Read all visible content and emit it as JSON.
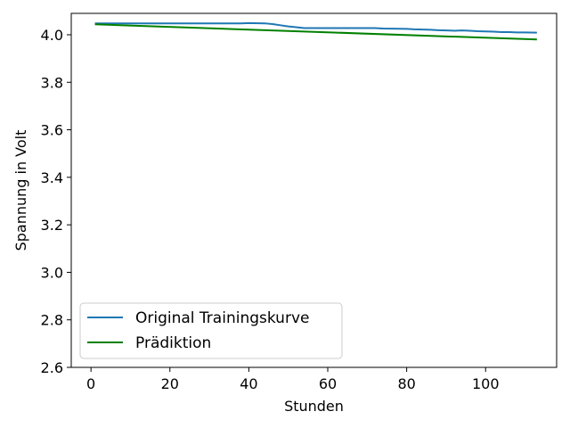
{
  "chart_data": {
    "type": "line",
    "title": "",
    "xlabel": "Stunden",
    "ylabel": "Spannung in Volt",
    "xlim": [
      -5,
      118
    ],
    "ylim": [
      2.6,
      4.09
    ],
    "xticks": [
      0,
      20,
      40,
      60,
      80,
      100
    ],
    "yticks": [
      2.6,
      2.8,
      3.0,
      3.2,
      3.4,
      3.6,
      3.8,
      4.0
    ],
    "xtick_labels": [
      "0",
      "20",
      "40",
      "60",
      "80",
      "100"
    ],
    "ytick_labels": [
      "2.6",
      "2.8",
      "3.0",
      "3.2",
      "3.4",
      "3.6",
      "3.8",
      "4.0"
    ],
    "grid": false,
    "legend_position": "lower-left",
    "series": [
      {
        "name": "Original Trainingskurve",
        "color": "#1f77b4",
        "x": [
          1,
          10,
          20,
          30,
          38,
          40,
          44,
          46,
          48,
          50,
          52,
          54,
          60,
          70,
          72,
          74,
          80,
          82,
          84,
          86,
          88,
          90,
          92,
          94,
          96,
          98,
          100,
          102,
          104,
          106,
          108,
          110,
          113
        ],
        "y": [
          4.048,
          4.048,
          4.048,
          4.048,
          4.048,
          4.049,
          4.048,
          4.045,
          4.04,
          4.035,
          4.032,
          4.028,
          4.028,
          4.028,
          4.028,
          4.026,
          4.025,
          4.023,
          4.022,
          4.021,
          4.019,
          4.018,
          4.017,
          4.018,
          4.017,
          4.015,
          4.014,
          4.013,
          4.011,
          4.011,
          4.01,
          4.01,
          4.009
        ]
      },
      {
        "name": "Prädiktion",
        "color": "#008000",
        "x": [
          1,
          113
        ],
        "y": [
          4.044,
          3.98
        ]
      }
    ]
  }
}
